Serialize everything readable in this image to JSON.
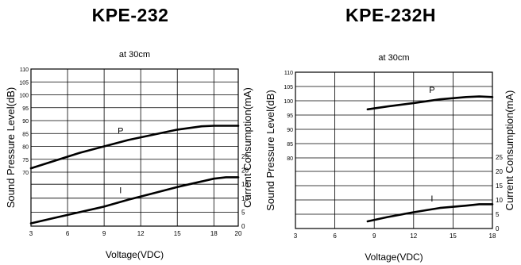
{
  "charts": [
    {
      "model": "KPE-232",
      "subtitle": "at 30cm",
      "xlabel": "Voltage(VDC)",
      "ylabel_left": "Sound Pressure Level(dB)",
      "ylabel_right": "Current Consumption(mA)",
      "x_ticks": [
        "3",
        "6",
        "9",
        "12",
        "15",
        "18",
        "20"
      ],
      "left_ticks": [
        "110",
        "105",
        "100",
        "95",
        "90",
        "85",
        "80",
        "75",
        "70"
      ],
      "right_ticks": [
        "25",
        "20",
        "15",
        "10",
        "5",
        "0"
      ]
    },
    {
      "model": "KPE-232H",
      "subtitle": "at 30cm",
      "xlabel": "Voltage(VDC)",
      "ylabel_left": "Sound Pressure Level(dB)",
      "ylabel_right": "Current Consumption(mA)",
      "x_ticks": [
        "3",
        "6",
        "9",
        "12",
        "15",
        "18"
      ],
      "left_ticks": [
        "110",
        "105",
        "100",
        "95",
        "90",
        "85",
        "80"
      ],
      "right_ticks": [
        "25",
        "20",
        "15",
        "10",
        "5",
        "0"
      ]
    }
  ],
  "chart_data": [
    {
      "type": "line",
      "title": "KPE-232",
      "subtitle": "at 30cm",
      "xlabel": "Voltage(VDC)",
      "ylabel": "Sound Pressure Level(dB)",
      "y2label": "Current Consumption(mA)",
      "xlim": [
        3,
        20
      ],
      "x_ticks": [
        3,
        6,
        9,
        12,
        15,
        18,
        20
      ],
      "ylim": [
        70,
        110
      ],
      "y_ticks": [
        70,
        75,
        80,
        85,
        90,
        95,
        100,
        105,
        110
      ],
      "y2lim": [
        0,
        25
      ],
      "y2_ticks": [
        0,
        5,
        10,
        15,
        20,
        25
      ],
      "grid": true,
      "series": [
        {
          "name": "P",
          "axis": "left",
          "x": [
            3,
            5,
            7,
            9,
            11,
            13,
            15,
            17,
            18,
            19,
            20
          ],
          "y": [
            71.5,
            74.5,
            77.5,
            80,
            82.5,
            84.5,
            86.5,
            87.8,
            88,
            88,
            88
          ]
        },
        {
          "name": "I",
          "axis": "right",
          "x": [
            3,
            5,
            7,
            9,
            11,
            13,
            15,
            17,
            18,
            19,
            20
          ],
          "y": [
            1,
            3,
            5,
            7,
            9.5,
            11.7,
            14,
            16,
            17,
            17.5,
            17.5
          ]
        }
      ]
    },
    {
      "type": "line",
      "title": "KPE-232H",
      "subtitle": "at 30cm",
      "xlabel": "Voltage(VDC)",
      "ylabel": "Sound Pressure Level(dB)",
      "y2label": "Current Consumption(mA)",
      "xlim": [
        3,
        18
      ],
      "x_ticks": [
        3,
        6,
        9,
        12,
        15,
        18
      ],
      "ylim": [
        80,
        110
      ],
      "y_ticks": [
        80,
        85,
        90,
        95,
        100,
        105,
        110
      ],
      "y2lim": [
        0,
        25
      ],
      "y2_ticks": [
        0,
        5,
        10,
        15,
        20,
        25
      ],
      "grid": true,
      "series": [
        {
          "name": "P",
          "axis": "left",
          "x": [
            8.5,
            10,
            12,
            14,
            16,
            17,
            18
          ],
          "y": [
            97,
            98,
            99.2,
            100.5,
            101.3,
            101.5,
            101.3
          ]
        },
        {
          "name": "I",
          "axis": "right",
          "x": [
            8.5,
            10,
            12,
            14,
            16,
            17,
            18
          ],
          "y": [
            2.5,
            4,
            5.7,
            7.2,
            8,
            8.5,
            8.5
          ]
        }
      ]
    }
  ]
}
